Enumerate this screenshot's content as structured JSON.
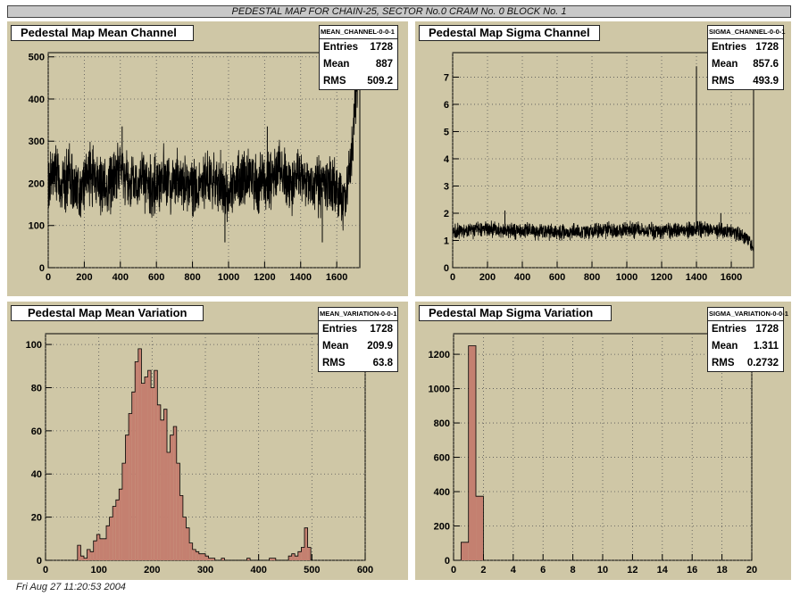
{
  "header": {
    "title": "PEDESTAL MAP FOR CHAIN-25, SECTOR No.0 CRAM No. 0 BLOCK No. 1"
  },
  "footer": {
    "text": "Fri Aug 27 11:20:53 2004"
  },
  "colors": {
    "pad": "#cfc7a6",
    "fill": "#c48070",
    "line": "#000000",
    "grid": "#555555"
  },
  "chart_data": [
    {
      "type": "line",
      "title": "Pedestal Map Mean Channel",
      "stats": {
        "name": "MEAN_CHANNEL-0-0-1",
        "entries": "1728",
        "mean": "887",
        "rms": "509.2"
      },
      "labels": {
        "entries": "Entries",
        "mean": "Mean",
        "rms": "RMS"
      },
      "xlim": [
        0,
        1728
      ],
      "ylim": [
        0,
        510
      ],
      "xticks": [
        0,
        200,
        400,
        600,
        800,
        1000,
        1200,
        1400,
        1600
      ],
      "yticks": [
        0,
        100,
        200,
        300,
        400,
        500
      ],
      "grid": true,
      "x": [
        0,
        40,
        80,
        120,
        160,
        200,
        240,
        280,
        320,
        360,
        400,
        440,
        480,
        520,
        560,
        600,
        640,
        680,
        720,
        760,
        800,
        840,
        880,
        920,
        960,
        1000,
        1040,
        1080,
        1120,
        1160,
        1200,
        1240,
        1280,
        1320,
        1360,
        1400,
        1440,
        1480,
        1520,
        1560,
        1600,
        1640,
        1680,
        1700,
        1728
      ],
      "values": [
        200,
        230,
        190,
        215,
        180,
        205,
        225,
        200,
        190,
        210,
        240,
        205,
        195,
        215,
        185,
        200,
        220,
        195,
        210,
        190,
        200,
        175,
        215,
        205,
        195,
        160,
        210,
        200,
        225,
        195,
        210,
        205,
        240,
        200,
        190,
        215,
        195,
        205,
        190,
        210,
        185,
        150,
        240,
        400,
        505
      ],
      "noise_amplitude": 85,
      "events": [
        {
          "x": 980,
          "y": 60
        },
        {
          "x": 1520,
          "y": 60
        },
        {
          "x": 1215,
          "y": 335
        },
        {
          "x": 410,
          "y": 335
        }
      ]
    },
    {
      "type": "line",
      "title": "Pedestal Map Sigma Channel",
      "stats": {
        "name": "SIGMA_CHANNEL-0-0-1",
        "entries": "1728",
        "mean": "857.6",
        "rms": "493.9"
      },
      "labels": {
        "entries": "Entries",
        "mean": "Mean",
        "rms": "RMS"
      },
      "xlim": [
        0,
        1728
      ],
      "ylim": [
        0,
        7.9
      ],
      "xticks": [
        0,
        200,
        400,
        600,
        800,
        1000,
        1200,
        1400,
        1600
      ],
      "yticks": [
        0,
        1,
        2,
        3,
        4,
        5,
        6,
        7
      ],
      "grid": true,
      "x": [
        0,
        200,
        400,
        600,
        800,
        1000,
        1200,
        1400,
        1600,
        1680,
        1728
      ],
      "values": [
        1.35,
        1.4,
        1.35,
        1.3,
        1.35,
        1.4,
        1.35,
        1.4,
        1.35,
        1.1,
        0.8
      ],
      "noise_amplitude": 0.35,
      "events": [
        {
          "x": 1400,
          "y": 7.4
        },
        {
          "x": 300,
          "y": 2.1
        },
        {
          "x": 1540,
          "y": 2.0
        }
      ]
    },
    {
      "type": "bar",
      "title": "Pedestal Map Mean Variation",
      "stats": {
        "name": "MEAN_VARIATION-0-0-1",
        "entries": "1728",
        "mean": "209.9",
        "rms": "63.8"
      },
      "labels": {
        "entries": "Entries",
        "mean": "Mean",
        "rms": "RMS"
      },
      "xlim": [
        0,
        600
      ],
      "ylim": [
        0,
        105
      ],
      "xticks": [
        0,
        100,
        200,
        300,
        400,
        500,
        600
      ],
      "yticks": [
        0,
        20,
        40,
        60,
        80,
        100
      ],
      "grid": true,
      "bin_width": 6,
      "x": [
        60,
        66,
        72,
        78,
        84,
        90,
        96,
        102,
        108,
        114,
        120,
        126,
        132,
        138,
        144,
        150,
        156,
        162,
        168,
        174,
        180,
        186,
        192,
        198,
        204,
        210,
        216,
        222,
        228,
        234,
        240,
        246,
        252,
        258,
        264,
        270,
        276,
        282,
        288,
        294,
        300,
        306,
        312,
        318,
        324,
        330,
        336,
        342,
        348,
        354,
        360,
        366,
        372,
        378,
        384,
        390,
        396,
        402,
        408,
        414,
        420,
        426,
        432,
        438,
        444,
        450,
        456,
        462,
        468,
        474,
        480,
        486,
        492
      ],
      "values": [
        7,
        2,
        1,
        5,
        4,
        9,
        12,
        10,
        10,
        16,
        20,
        25,
        28,
        33,
        45,
        58,
        68,
        78,
        92,
        98,
        82,
        85,
        88,
        80,
        88,
        72,
        65,
        70,
        50,
        58,
        62,
        45,
        30,
        20,
        15,
        8,
        5,
        4,
        3,
        3,
        2,
        1,
        1,
        0,
        0,
        1,
        0,
        0,
        0,
        0,
        0,
        0,
        0,
        1,
        0,
        0,
        0,
        0,
        0,
        0,
        1,
        1,
        0,
        0,
        0,
        0,
        2,
        3,
        2,
        4,
        6,
        15,
        6
      ],
      "series_style": "filled-steps"
    },
    {
      "type": "bar",
      "title": "Pedestal Map Sigma Variation",
      "stats": {
        "name": "SIGMA_VARIATION-0-0-1",
        "entries": "1728",
        "mean": "1.311",
        "rms": "0.2732"
      },
      "labels": {
        "entries": "Entries",
        "mean": "Mean",
        "rms": "RMS"
      },
      "xlim": [
        0,
        20
      ],
      "ylim": [
        0,
        1320
      ],
      "xticks": [
        0,
        2,
        4,
        6,
        8,
        10,
        12,
        14,
        16,
        18,
        20
      ],
      "yticks": [
        0,
        200,
        400,
        600,
        800,
        1000,
        1200
      ],
      "grid": true,
      "bin_width": 0.5,
      "x": [
        0.5,
        1.0,
        1.5
      ],
      "values": [
        105,
        1250,
        373
      ],
      "series_style": "filled-steps"
    }
  ]
}
